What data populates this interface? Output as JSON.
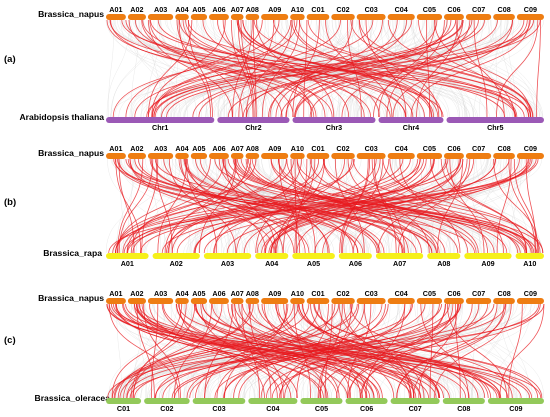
{
  "colors": {
    "background_link": "#d4d4d4",
    "syntenic_link": "#e8191f",
    "napus_bar": "#ee7d12",
    "arabidopsis_bar": "#9b59b6",
    "rapa_bar": "#f6f01a",
    "oleracea_bar": "#93c95a"
  },
  "panels": [
    {
      "label": "(a)",
      "top_species": "Brassica_napus",
      "bottom_species": "Arabidopsis thaliana",
      "top_chromosomes": [
        "A01",
        "A02",
        "A03",
        "A04",
        "A05",
        "A06",
        "A07",
        "A08",
        "A09",
        "A10",
        "C01",
        "C02",
        "C03",
        "C04",
        "C05",
        "C06",
        "C07",
        "C08",
        "C09"
      ],
      "bottom_chromosomes": [
        "Chr1",
        "Chr2",
        "Chr3",
        "Chr4",
        "Chr5"
      ]
    },
    {
      "label": "(b)",
      "top_species": "Brassica_napus",
      "bottom_species": "Brassica_rapa",
      "top_chromosomes": [
        "A01",
        "A02",
        "A03",
        "A04",
        "A05",
        "A06",
        "A07",
        "A08",
        "A09",
        "A10",
        "C01",
        "C02",
        "C03",
        "C04",
        "C05",
        "C06",
        "C07",
        "C08",
        "C09"
      ],
      "bottom_chromosomes": [
        "A01",
        "A02",
        "A03",
        "A04",
        "A05",
        "A06",
        "A07",
        "A08",
        "A09",
        "A10"
      ]
    },
    {
      "label": "(c)",
      "top_species": "Brassica_napus",
      "bottom_species": "Brassica_oleracea",
      "top_chromosomes": [
        "A01",
        "A02",
        "A03",
        "A04",
        "A05",
        "A06",
        "A07",
        "A08",
        "A09",
        "A10",
        "C01",
        "C02",
        "C03",
        "C04",
        "C05",
        "C06",
        "C07",
        "C08",
        "C09"
      ],
      "bottom_chromosomes": [
        "C01",
        "C02",
        "C03",
        "C04",
        "C05",
        "C06",
        "C07",
        "C08",
        "C09"
      ]
    }
  ]
}
